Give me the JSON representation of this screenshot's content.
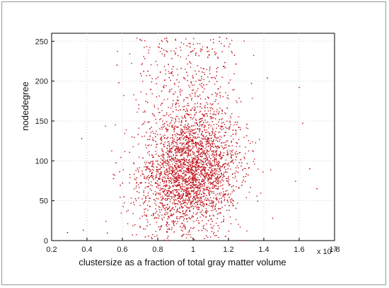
{
  "chart_data": {
    "type": "scatter",
    "title": "",
    "xlabel": "clustersize as a fraction of total gray matter volume",
    "ylabel": "nodedegree",
    "x_multiplier_label": "x 10",
    "x_multiplier_exponent": "-3",
    "xlim": [
      0.2,
      1.8
    ],
    "ylim": [
      0,
      260
    ],
    "x_ticks": [
      0.2,
      0.4,
      0.6,
      0.8,
      1,
      1.2,
      1.4,
      1.6,
      1.8
    ],
    "x_tick_labels": [
      "0.2",
      "0.4",
      "0.6",
      "0.8",
      "1",
      "1.2",
      "1.4",
      "1.6",
      "1.8"
    ],
    "y_ticks": [
      0,
      50,
      100,
      150,
      200,
      250
    ],
    "y_tick_labels": [
      "0",
      "50",
      "100",
      "150",
      "200",
      "250"
    ],
    "grid": true,
    "grid_style": "dotted",
    "marker_color": "#c0141c",
    "points_approx_count": 4000,
    "distribution_summary": {
      "x_center": 0.98,
      "x_spread_sd": 0.14,
      "y_center": 85,
      "y_spread_sd": 38,
      "x_range_observed": [
        0.28,
        1.72
      ],
      "y_range_observed": [
        0,
        255
      ]
    },
    "sample_points": [
      {
        "x": 0.29,
        "y": 10
      },
      {
        "x": 0.37,
        "y": 128
      },
      {
        "x": 0.38,
        "y": 13
      },
      {
        "x": 0.55,
        "y": 83
      },
      {
        "x": 0.57,
        "y": 220
      },
      {
        "x": 0.58,
        "y": 198
      },
      {
        "x": 0.7,
        "y": 252
      },
      {
        "x": 0.85,
        "y": 254
      },
      {
        "x": 1.15,
        "y": 255
      },
      {
        "x": 1.42,
        "y": 204
      },
      {
        "x": 1.45,
        "y": 28
      },
      {
        "x": 1.6,
        "y": 192
      },
      {
        "x": 1.62,
        "y": 147
      },
      {
        "x": 1.66,
        "y": 90
      },
      {
        "x": 1.7,
        "y": 65
      }
    ]
  }
}
